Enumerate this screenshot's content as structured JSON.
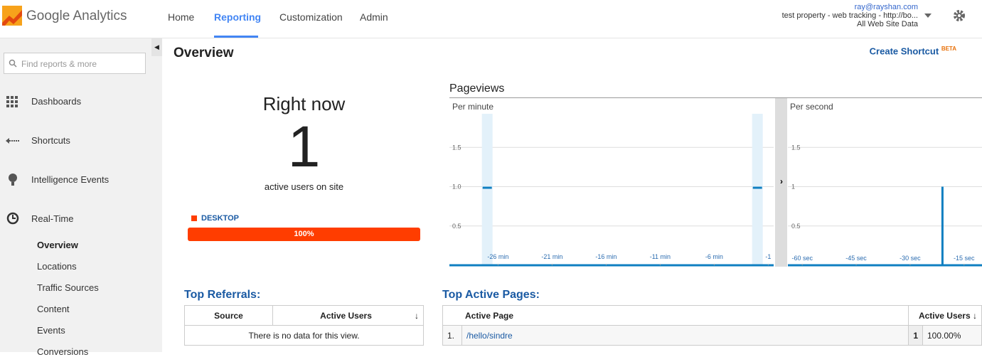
{
  "header": {
    "logo": "Google Analytics",
    "nav": [
      "Home",
      "Reporting",
      "Customization",
      "Admin"
    ],
    "active_nav": 1,
    "account": {
      "email": "ray@rayshan.com",
      "property": "test property - web tracking - http://bo...",
      "view": "All Web Site Data"
    }
  },
  "sidebar": {
    "search_placeholder": "Find reports & more",
    "items": [
      "Dashboards",
      "Shortcuts",
      "Intelligence Events",
      "Real-Time"
    ],
    "subitems": [
      "Overview",
      "Locations",
      "Traffic Sources",
      "Content",
      "Events",
      "Conversions"
    ],
    "active_subitem": 0
  },
  "page": {
    "title": "Overview",
    "shortcut": "Create Shortcut",
    "shortcut_badge": "BETA"
  },
  "right_now": {
    "heading": "Right now",
    "count": 1,
    "caption": "active users on site",
    "device": "DESKTOP",
    "device_color": "#ff3d00",
    "share": {
      "value": 100,
      "label": "100%"
    }
  },
  "pageviews": {
    "title": "Pageviews",
    "charts": [
      {
        "type": "bar",
        "subtitle": "Per minute",
        "x": [
          -27,
          -2
        ],
        "values": [
          1,
          1
        ],
        "color": "#0f7fc1",
        "xlim": [
          -30.5,
          -0.5
        ],
        "ylim": [
          0,
          2
        ],
        "xticks": [
          {
            "value": -26,
            "label": "-26 min"
          },
          {
            "value": -21,
            "label": "-21 min"
          },
          {
            "value": -16,
            "label": "-16 min"
          },
          {
            "value": -11,
            "label": "-11 min"
          },
          {
            "value": -6,
            "label": "-6 min"
          },
          {
            "value": -1,
            "label": "-1"
          }
        ],
        "yticks": [
          0.5,
          {
            "value": 1,
            "label": "1.0"
          },
          1.5
        ],
        "grid": true
      },
      {
        "type": "bar",
        "subtitle": "Per second",
        "x": [
          -21
        ],
        "values": [
          1
        ],
        "color": "#0f7fc1",
        "xlim": [
          -64,
          -10
        ],
        "ylim": [
          0,
          2
        ],
        "xticks": [
          {
            "value": -60,
            "label": "-60 sec"
          },
          {
            "value": -45,
            "label": "-45 sec"
          },
          {
            "value": -30,
            "label": "-30 sec"
          },
          {
            "value": -15,
            "label": "-15 sec"
          }
        ],
        "yticks": [
          0.5,
          1,
          1.5
        ],
        "grid": true
      }
    ]
  },
  "referrals": {
    "title": "Top Referrals:",
    "columns": [
      "Source",
      "Active Users"
    ],
    "empty": "There is no data for this view."
  },
  "active_pages": {
    "title": "Top Active Pages:",
    "columns": [
      "Active Page",
      "Active Users"
    ],
    "rows": [
      [
        "1.",
        "/hello/sindre",
        1,
        "100.00%"
      ]
    ]
  }
}
